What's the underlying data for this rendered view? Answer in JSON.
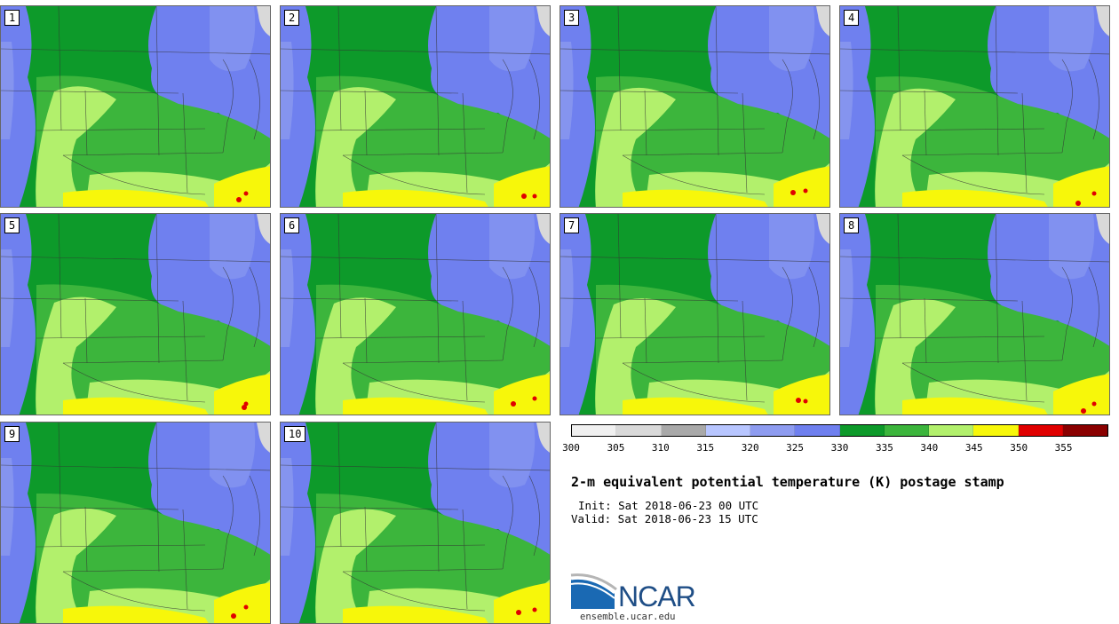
{
  "panels": [
    {
      "label": "1"
    },
    {
      "label": "2"
    },
    {
      "label": "3"
    },
    {
      "label": "4"
    },
    {
      "label": "5"
    },
    {
      "label": "6"
    },
    {
      "label": "7"
    },
    {
      "label": "8"
    },
    {
      "label": "9"
    },
    {
      "label": "10"
    }
  ],
  "colorbar": {
    "ticks": [
      "300",
      "305",
      "310",
      "315",
      "320",
      "325",
      "330",
      "335",
      "340",
      "345",
      "350",
      "355"
    ],
    "colors": [
      "#f0f0f0",
      "#d9d9d9",
      "#a9a9a9",
      "#b8c6ff",
      "#8e9cf0",
      "#6f80ef",
      "#0d9a2a",
      "#3cb53c",
      "#b2f06c",
      "#f7f70a",
      "#e00000",
      "#8a0000"
    ]
  },
  "title": "2-m equivalent potential temperature (K) postage stamp",
  "init": "Init: Sat 2018-06-23 00 UTC",
  "valid": "Valid: Sat 2018-06-23 15 UTC",
  "logo": {
    "word": "NCAR",
    "url": "ensemble.ucar.edu",
    "icon": "ncar-logo-icon"
  }
}
